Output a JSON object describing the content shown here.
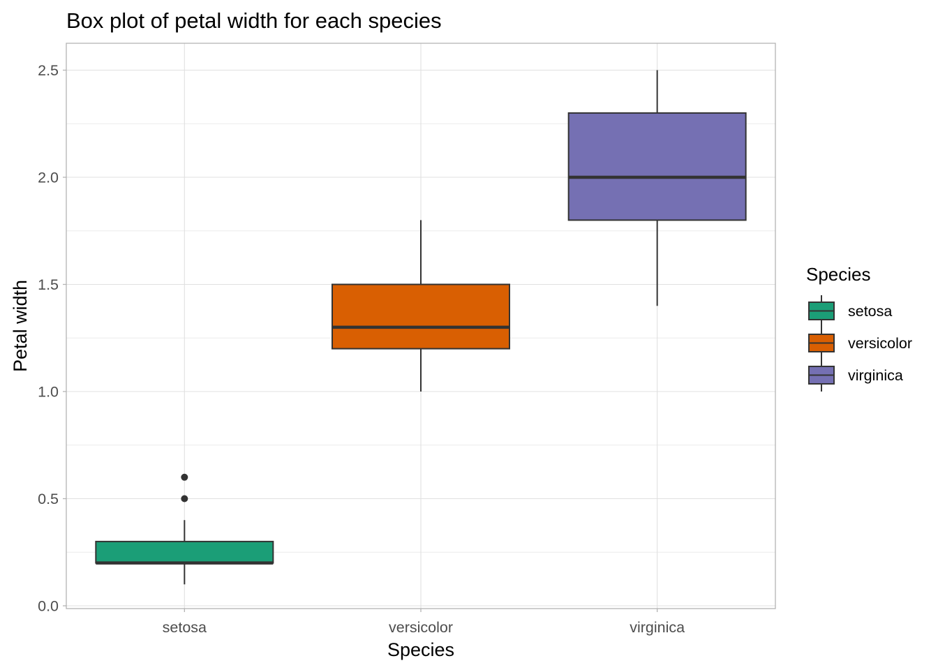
{
  "chart_data": {
    "type": "boxplot",
    "title": "Box plot of petal width for each species",
    "xlabel": "Species",
    "ylabel": "Petal width",
    "ylim": [
      -0.02,
      2.62
    ],
    "yticks": [
      0.0,
      0.5,
      1.0,
      1.5,
      2.0,
      2.5
    ],
    "ytick_labels": [
      "0.0",
      "0.5",
      "1.0",
      "1.5",
      "2.0",
      "2.5"
    ],
    "grid": true,
    "legend": {
      "title": "Species",
      "position": "right"
    },
    "categories": [
      "setosa",
      "versicolor",
      "virginica"
    ],
    "series": [
      {
        "name": "setosa",
        "color": "#1b9e77",
        "whisker_low": 0.1,
        "q1": 0.2,
        "median": 0.2,
        "q3": 0.3,
        "whisker_high": 0.4,
        "outliers": [
          0.5,
          0.6
        ]
      },
      {
        "name": "versicolor",
        "color": "#d95f02",
        "whisker_low": 1.0,
        "q1": 1.2,
        "median": 1.3,
        "q3": 1.5,
        "whisker_high": 1.8,
        "outliers": []
      },
      {
        "name": "virginica",
        "color": "#7570b3",
        "whisker_low": 1.4,
        "q1": 1.8,
        "median": 2.0,
        "q3": 2.3,
        "whisker_high": 2.5,
        "outliers": []
      }
    ]
  }
}
